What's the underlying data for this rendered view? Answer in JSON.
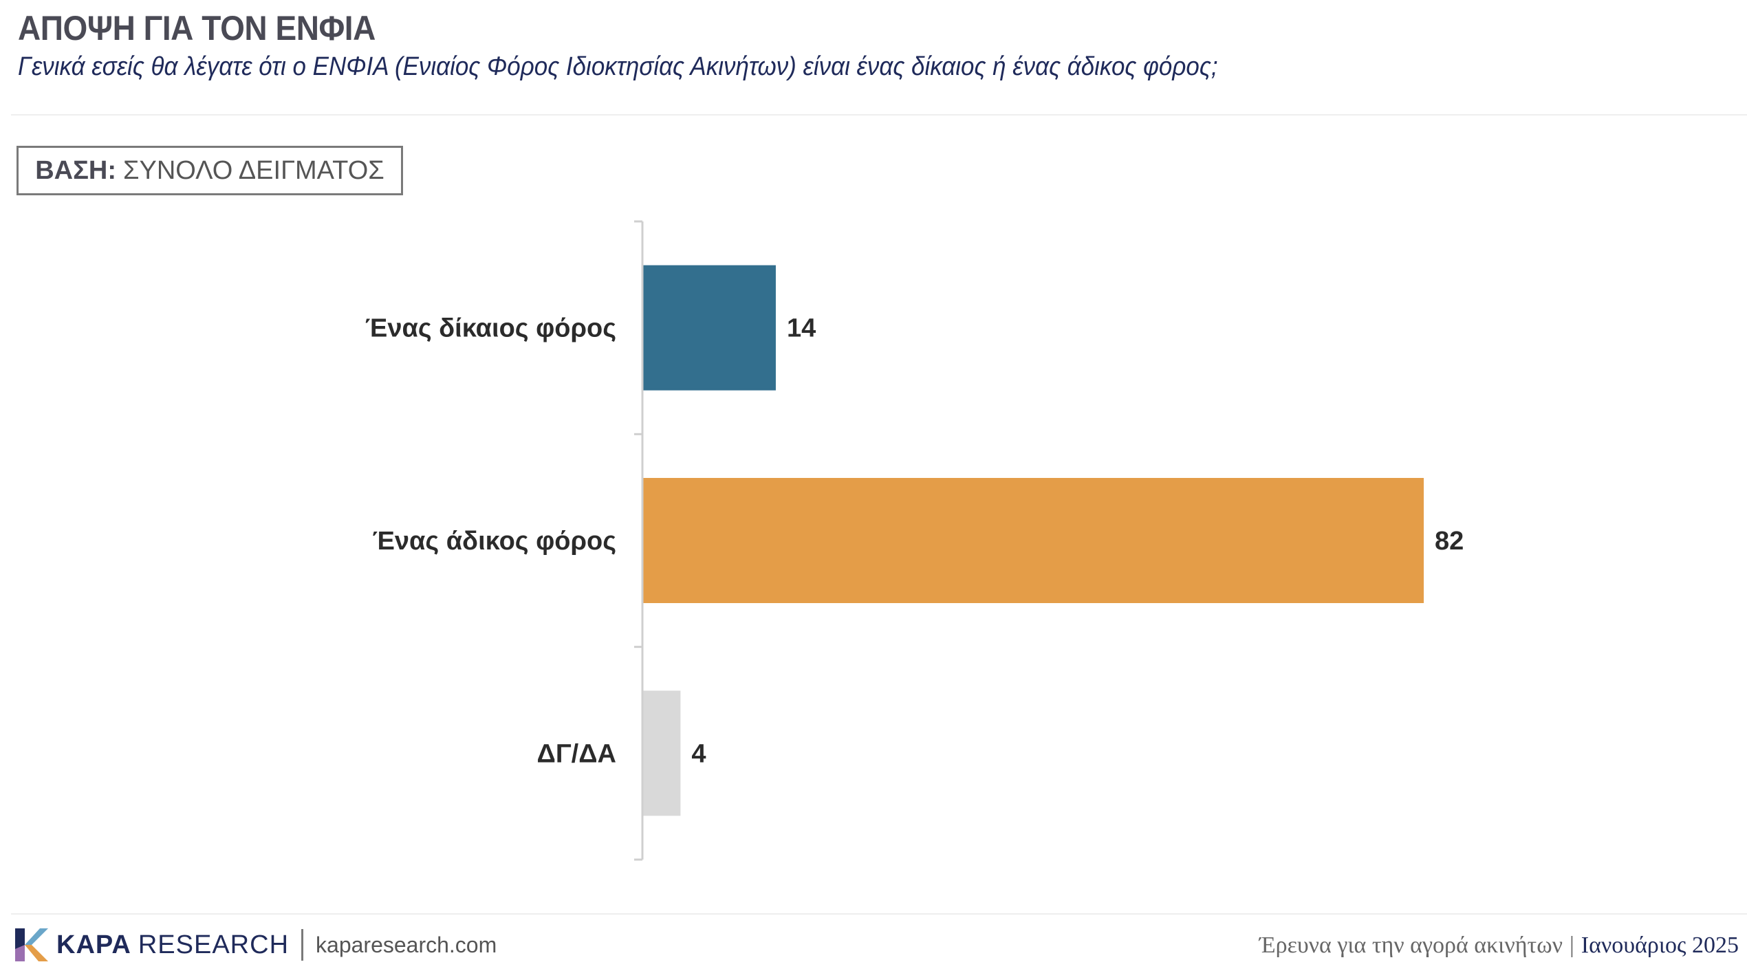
{
  "header": {
    "title": "ΑΠΟΨΗ ΓΙΑ ΤΟΝ ΕΝΦΙΑ",
    "subtitle": "Γενικά εσείς θα λέγατε ότι ο ΕΝΦΙΑ (Ενιαίος Φόρος Ιδιοκτησίας Ακινήτων) είναι ένας δίκαιος ή ένας άδικος φόρος;"
  },
  "base": {
    "label": "ΒΑΣΗ:",
    "value": "ΣΥΝΟΛΟ ΔΕΙΓΜΑΤΟΣ"
  },
  "chart_data": {
    "type": "bar",
    "orientation": "horizontal",
    "categories": [
      "Ένας δίκαιος φόρος",
      "Ένας άδικος φόρος",
      "ΔΓ/ΔΑ"
    ],
    "values": [
      14,
      82,
      4
    ],
    "colors": [
      "#336f8e",
      "#e49d48",
      "#d9d9d9"
    ],
    "xlim": [
      0,
      82
    ],
    "title": "",
    "xlabel": "",
    "ylabel": "",
    "grid": false,
    "legend": "none"
  },
  "footer": {
    "brand_bold": "KAPA",
    "brand_light": "RESEARCH",
    "url": "kaparesearch.com",
    "survey": "Έρευνα για την αγορά ακινήτων",
    "separator": "|",
    "date": "Ιανουάριος 2025"
  },
  "colors": {
    "title": "#4a4a55",
    "subtitle": "#1f2a5a",
    "brand_navy": "#1f2a5a"
  },
  "icons": {
    "logo": "kapa-k-logo-icon"
  }
}
